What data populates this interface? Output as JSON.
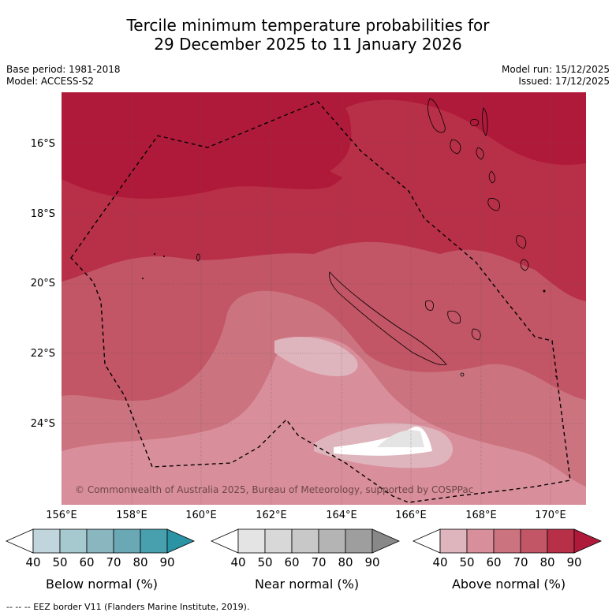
{
  "title": {
    "line1": "Tercile minimum temperature probabilities for",
    "line2": "29 December 2025 to 11 January 2026"
  },
  "meta": {
    "base_period": "Base period: 1981-2018",
    "model": "Model: ACCESS-S2",
    "model_run": "Model run: 15/12/2025",
    "issued": "Issued: 17/12/2025"
  },
  "map": {
    "lat_labels": [
      "16°S",
      "18°S",
      "20°S",
      "22°S",
      "24°S"
    ],
    "lon_labels": [
      "156°E",
      "158°E",
      "160°E",
      "162°E",
      "164°E",
      "166°E",
      "168°E",
      "170°E"
    ],
    "copyright": "© Commonwealth of Australia 2025, Bureau of Meteorology, supported by COSPPac"
  },
  "colorbars": [
    {
      "label": "Below normal (%)",
      "ticks": [
        "40",
        "50",
        "60",
        "70",
        "80",
        "90"
      ],
      "colors": [
        "#c0d6dc",
        "#a6c8cf",
        "#8ab6c0",
        "#6aa8b5",
        "#48a0af",
        "#2a93a4"
      ]
    },
    {
      "label": "Near normal (%)",
      "ticks": [
        "40",
        "50",
        "60",
        "70",
        "80",
        "90"
      ],
      "colors": [
        "#e4e4e4",
        "#d8d8d8",
        "#c8c8c8",
        "#b4b4b4",
        "#9e9e9e",
        "#888888"
      ]
    },
    {
      "label": "Above normal (%)",
      "ticks": [
        "40",
        "50",
        "60",
        "70",
        "80",
        "90"
      ],
      "colors": [
        "#dfb5bd",
        "#d98f9b",
        "#cc7380",
        "#c25566",
        "#b83048",
        "#b01a3a"
      ]
    }
  ],
  "footnote": "-- -- -- EEZ border V11 (Flanders Marine Institute, 2019)."
}
